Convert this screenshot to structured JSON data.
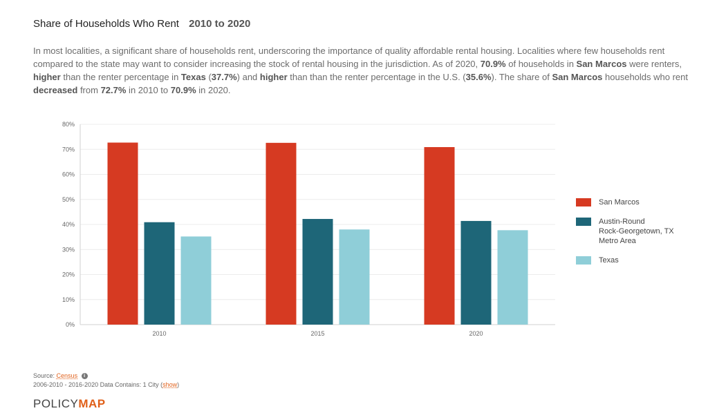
{
  "header": {
    "title": "Share of Households Who Rent",
    "range": "2010 to 2020"
  },
  "description": [
    {
      "t": "In most localities, a significant share of households rent, underscoring the importance of quality affordable rental housing. Localities where few households rent compared to the state may want to consider increasing the stock of rental housing in the jurisdiction. As of 2020, "
    },
    {
      "t": "70.9%",
      "b": true
    },
    {
      "t": " of households in "
    },
    {
      "t": "San Marcos",
      "b": true
    },
    {
      "t": " were renters, "
    },
    {
      "t": "higher",
      "b": true
    },
    {
      "t": " than the renter percentage in "
    },
    {
      "t": "Texas",
      "b": true
    },
    {
      "t": " ("
    },
    {
      "t": "37.7%",
      "b": true
    },
    {
      "t": ") and "
    },
    {
      "t": "higher",
      "b": true
    },
    {
      "t": " than than the renter percentage in the U.S. ("
    },
    {
      "t": "35.6%",
      "b": true
    },
    {
      "t": "). The share of "
    },
    {
      "t": "San Marcos",
      "b": true
    },
    {
      "t": " households who rent "
    },
    {
      "t": "decreased",
      "b": true
    },
    {
      "t": " from "
    },
    {
      "t": "72.7%",
      "b": true
    },
    {
      "t": " in 2010 to "
    },
    {
      "t": "70.9%",
      "b": true
    },
    {
      "t": " in 2020."
    }
  ],
  "chart_data": {
    "type": "bar",
    "categories": [
      "2010",
      "2015",
      "2020"
    ],
    "series": [
      {
        "name": "San Marcos",
        "values": [
          72.7,
          72.6,
          70.9
        ],
        "color": "#d63a22"
      },
      {
        "name": "Austin-Round Rock-Georgetown, TX Metro Area",
        "values": [
          40.9,
          42.2,
          41.4
        ],
        "color": "#1e6678"
      },
      {
        "name": "Texas",
        "values": [
          35.2,
          38.0,
          37.7
        ],
        "color": "#8fced8"
      }
    ],
    "ylim": [
      0,
      80
    ],
    "yticks": [
      0,
      10,
      20,
      30,
      40,
      50,
      60,
      70,
      80
    ],
    "ytick_labels": [
      "0%",
      "10%",
      "20%",
      "30%",
      "40%",
      "50%",
      "60%",
      "70%",
      "80%"
    ],
    "legend_labels": [
      [
        "San Marcos"
      ],
      [
        "Austin-Round",
        "Rock-Georgetown, TX",
        "Metro Area"
      ],
      [
        "Texas"
      ]
    ],
    "legend_position": "right",
    "grid": true
  },
  "footer": {
    "source_label": "Source:",
    "source_link": "Census",
    "info_icon_glyph": "i",
    "data_prefix": "2006-2010 - 2016-2020 Data Contains: 1 City (",
    "data_link": "show",
    "data_suffix": ")"
  },
  "logo": {
    "part1": "POLICY",
    "part2": "MAP"
  }
}
